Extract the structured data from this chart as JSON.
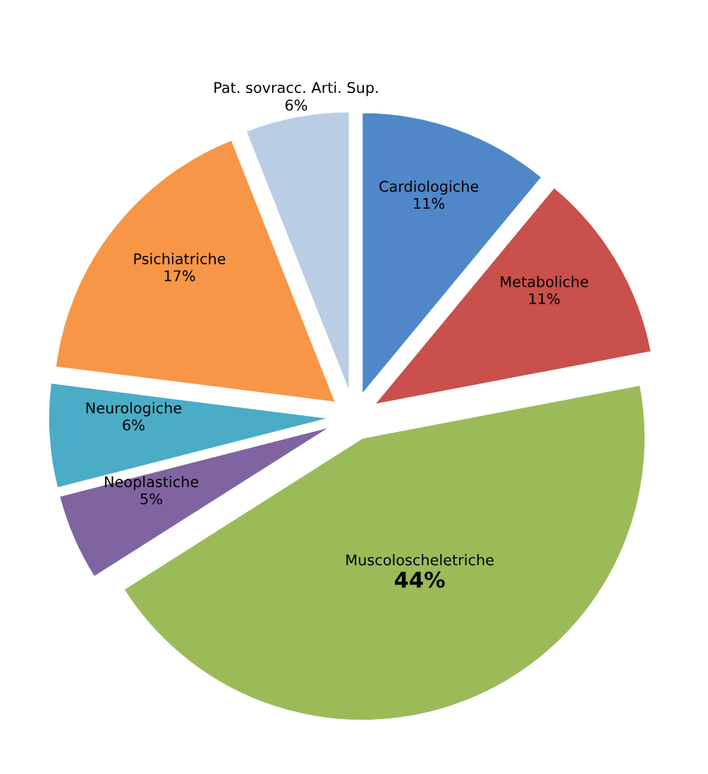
{
  "chart_data": {
    "type": "pie",
    "categories": [
      "Cardiologiche",
      "Metaboliche",
      "Muscoloscheletriche",
      "Neoplastiche",
      "Neurologiche",
      "Psichiatriche",
      "Pat. sovracc. Arti. Sup."
    ],
    "values": [
      11,
      11,
      44,
      5,
      6,
      17,
      6
    ],
    "colors": [
      "#4f87c8",
      "#c9504b",
      "#9bbb59",
      "#8064a2",
      "#4bacc6",
      "#f79646",
      "#b9cde5"
    ],
    "value_labels": [
      "11%",
      "11%",
      "44%",
      "5%",
      "6%",
      "17%",
      "6%"
    ],
    "legend": false
  }
}
